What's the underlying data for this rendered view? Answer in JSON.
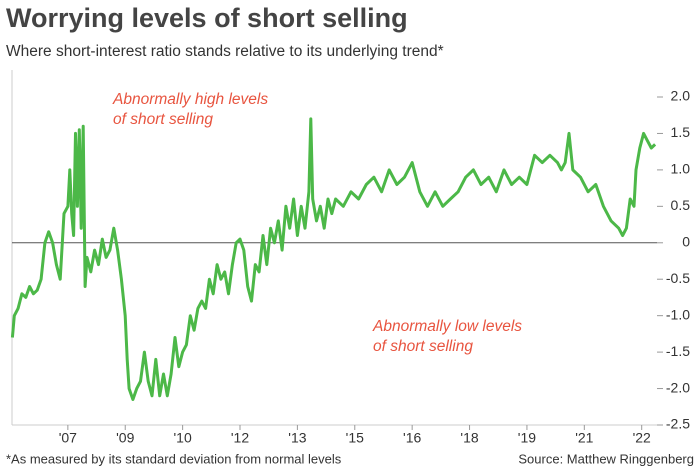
{
  "chart_data": {
    "type": "line",
    "title": "Worrying levels of short selling",
    "subtitle": "Where short-interest ratio stands relative to its underlying trend*",
    "annotations": [
      [
        "Abnormally high levels",
        "of short selling"
      ],
      [
        "Abnormally low levels",
        "of short selling"
      ]
    ],
    "footnote": "*As measured by its standard deviation from normal levels",
    "source": "Source: Matthew Ringgenberg",
    "color": "#4cb848",
    "xlim": [
      2005.54,
      2022.4
    ],
    "ylim": [
      -2.5,
      2.0
    ],
    "xticks": [
      {
        "value": 2007,
        "label": "'07"
      },
      {
        "value": 2008.5,
        "label": "'09"
      },
      {
        "value": 2010,
        "label": "'10"
      },
      {
        "value": 2011.5,
        "label": "'12"
      },
      {
        "value": 2013,
        "label": "'13"
      },
      {
        "value": 2014.5,
        "label": "'15"
      },
      {
        "value": 2016,
        "label": "'16"
      },
      {
        "value": 2017.5,
        "label": "'18"
      },
      {
        "value": 2019,
        "label": "'19"
      },
      {
        "value": 2020.5,
        "label": "'21"
      },
      {
        "value": 2022,
        "label": "'22"
      }
    ],
    "yticks": [
      {
        "value": 2.0,
        "label": "2.0"
      },
      1.5,
      {
        "value": 1.0,
        "label": "1.0"
      },
      0.5,
      0,
      -0.5,
      {
        "value": -1.0,
        "label": "-1.0"
      },
      -1.5,
      {
        "value": -2.0,
        "label": "-2.0"
      },
      -2.5
    ],
    "x": [
      2005.55,
      2005.6,
      2005.7,
      2005.8,
      2005.9,
      2006.0,
      2006.1,
      2006.2,
      2006.3,
      2006.4,
      2006.5,
      2006.6,
      2006.7,
      2006.8,
      2006.9,
      2007.0,
      2007.05,
      2007.1,
      2007.15,
      2007.2,
      2007.25,
      2007.3,
      2007.35,
      2007.4,
      2007.45,
      2007.5,
      2007.6,
      2007.7,
      2007.8,
      2007.9,
      2008.0,
      2008.1,
      2008.2,
      2008.3,
      2008.4,
      2008.5,
      2008.55,
      2008.6,
      2008.7,
      2008.8,
      2008.9,
      2009.0,
      2009.1,
      2009.2,
      2009.3,
      2009.4,
      2009.5,
      2009.6,
      2009.7,
      2009.8,
      2009.9,
      2010.0,
      2010.1,
      2010.2,
      2010.3,
      2010.4,
      2010.5,
      2010.6,
      2010.7,
      2010.8,
      2010.9,
      2011.0,
      2011.1,
      2011.2,
      2011.3,
      2011.4,
      2011.5,
      2011.6,
      2011.7,
      2011.8,
      2011.9,
      2012.0,
      2012.1,
      2012.2,
      2012.3,
      2012.4,
      2012.5,
      2012.6,
      2012.7,
      2012.8,
      2012.9,
      2013.0,
      2013.1,
      2013.2,
      2013.3,
      2013.35,
      2013.4,
      2013.5,
      2013.6,
      2013.7,
      2013.8,
      2013.9,
      2014.0,
      2014.2,
      2014.4,
      2014.6,
      2014.8,
      2015.0,
      2015.2,
      2015.4,
      2015.6,
      2015.8,
      2016.0,
      2016.2,
      2016.4,
      2016.6,
      2016.8,
      2017.0,
      2017.2,
      2017.4,
      2017.6,
      2017.8,
      2018.0,
      2018.2,
      2018.4,
      2018.6,
      2018.8,
      2019.0,
      2019.2,
      2019.4,
      2019.6,
      2019.8,
      2019.9,
      2020.0,
      2020.1,
      2020.2,
      2020.4,
      2020.6,
      2020.8,
      2021.0,
      2021.2,
      2021.4,
      2021.5,
      2021.6,
      2021.7,
      2021.8,
      2021.85,
      2021.95,
      2022.05,
      2022.15,
      2022.25,
      2022.35
    ],
    "values": [
      -1.3,
      -1.0,
      -0.9,
      -0.7,
      -0.75,
      -0.6,
      -0.7,
      -0.65,
      -0.5,
      0.0,
      0.15,
      0.0,
      -0.3,
      -0.5,
      0.4,
      0.5,
      1.0,
      0.4,
      0.1,
      1.5,
      0.5,
      1.55,
      0.2,
      1.6,
      -0.6,
      -0.2,
      -0.4,
      -0.1,
      -0.3,
      0.05,
      -0.2,
      -0.1,
      0.2,
      -0.1,
      -0.5,
      -1.0,
      -1.6,
      -2.0,
      -2.15,
      -2.0,
      -1.9,
      -1.5,
      -1.9,
      -2.1,
      -1.6,
      -2.1,
      -1.8,
      -2.1,
      -1.8,
      -1.3,
      -1.7,
      -1.5,
      -1.4,
      -1.0,
      -1.2,
      -0.9,
      -0.8,
      -0.9,
      -0.5,
      -0.7,
      -0.3,
      -0.5,
      -0.4,
      -0.7,
      -0.3,
      0.0,
      0.05,
      -0.1,
      -0.6,
      -0.8,
      -0.3,
      -0.4,
      0.1,
      -0.3,
      0.2,
      0.0,
      0.3,
      -0.1,
      0.5,
      0.2,
      0.6,
      0.1,
      0.5,
      0.2,
      0.7,
      1.7,
      0.6,
      0.3,
      0.5,
      0.2,
      0.6,
      0.4,
      0.6,
      0.5,
      0.7,
      0.6,
      0.8,
      0.9,
      0.7,
      1.0,
      0.8,
      0.9,
      1.1,
      0.7,
      0.5,
      0.7,
      0.5,
      0.6,
      0.7,
      0.9,
      1.0,
      0.8,
      0.9,
      0.7,
      1.0,
      0.8,
      0.9,
      0.8,
      1.2,
      1.1,
      1.2,
      1.1,
      1.0,
      1.1,
      1.5,
      1.0,
      0.9,
      0.7,
      0.8,
      0.5,
      0.3,
      0.2,
      0.1,
      0.2,
      0.6,
      0.5,
      1.0,
      1.3,
      1.5,
      1.4,
      1.3,
      1.35
    ]
  }
}
